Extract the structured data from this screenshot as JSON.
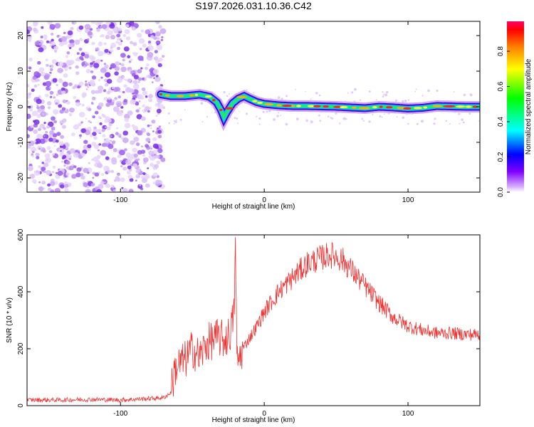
{
  "chart_data": [
    {
      "type": "heatmap",
      "title": "S197.2026.031.10.36.C42",
      "xlabel": "Height of straight line (km)",
      "ylabel": "Frequency (Hz)",
      "xlim": [
        -165,
        150
      ],
      "ylim": [
        -24,
        24
      ],
      "xticks": [
        -100,
        0,
        100
      ],
      "yticks": [
        -20,
        -10,
        0,
        10,
        20
      ],
      "noise_region_x": [
        -165,
        -72
      ],
      "ridge": {
        "x": [
          -72,
          -65,
          -55,
          -45,
          -38,
          -33,
          -30,
          -28,
          -26,
          -22,
          -18,
          -14,
          -10,
          -5,
          0,
          10,
          20,
          30,
          40,
          50,
          60,
          70,
          80,
          90,
          100,
          110,
          120,
          130,
          140,
          150
        ],
        "freq": [
          3.5,
          3.0,
          3.0,
          3.4,
          2.8,
          1.2,
          -1.0,
          -3.0,
          -1.5,
          1.0,
          2.3,
          3.0,
          2.2,
          1.3,
          0.8,
          0.4,
          0.2,
          0.2,
          0.1,
          0.0,
          -0.2,
          -0.4,
          0.0,
          -0.2,
          -0.5,
          -0.3,
          0.2,
          0.1,
          0.0,
          0.0
        ]
      },
      "colorbar": {
        "label": "Normalized spectral amplitude",
        "ticks": [
          "0.0",
          "0.2",
          "0.4",
          "0.6",
          "0.8"
        ],
        "range": [
          0,
          0.97
        ]
      }
    },
    {
      "type": "line",
      "xlabel": "Height of straight line (km)",
      "ylabel": "SNR (10 * v/v)",
      "xlim": [
        -165,
        150
      ],
      "ylim": [
        0,
        600
      ],
      "xticks": [
        -100,
        0,
        100
      ],
      "yticks": [
        0,
        200,
        400,
        600
      ],
      "series": [
        {
          "name": "SNR",
          "color": "#ee3333",
          "x": [
            -165,
            -140,
            -120,
            -100,
            -80,
            -70,
            -65,
            -62,
            -58,
            -55,
            -50,
            -45,
            -40,
            -36,
            -32,
            -28,
            -24,
            -21,
            -20,
            -19,
            -17,
            -15,
            -10,
            -5,
            0,
            10,
            20,
            30,
            40,
            45,
            50,
            55,
            60,
            70,
            80,
            90,
            100,
            110,
            120,
            130,
            140,
            150
          ],
          "values": [
            20,
            20,
            22,
            20,
            25,
            28,
            45,
            130,
            150,
            160,
            200,
            170,
            220,
            230,
            240,
            230,
            250,
            320,
            580,
            150,
            170,
            200,
            240,
            280,
            330,
            400,
            450,
            500,
            520,
            530,
            525,
            510,
            480,
            420,
            360,
            310,
            280,
            265,
            255,
            255,
            250,
            250
          ]
        }
      ]
    }
  ]
}
